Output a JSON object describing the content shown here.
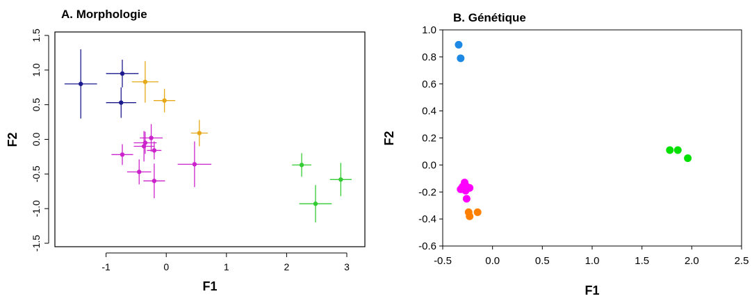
{
  "chart_data": [
    {
      "type": "scatter",
      "title": "A. Morphologie",
      "xlabel": "F1",
      "ylabel": "F2",
      "xlim": [
        -1.85,
        3.3
      ],
      "ylim": [
        -1.55,
        1.55
      ],
      "x_ticks": [
        -1,
        0,
        1,
        2,
        3
      ],
      "y_ticks": [
        -1.5,
        -1.0,
        -0.5,
        0.0,
        0.5,
        1.0,
        1.5
      ],
      "x_tick_labels": [
        "-1",
        "0",
        "1",
        "2",
        "3"
      ],
      "y_tick_labels": [
        "-1.5",
        "-1.0",
        "-0.5",
        "0.0",
        "0.5",
        "1.0",
        "1.5"
      ],
      "error_bars": true,
      "series": [
        {
          "color": "#1a1a8c",
          "points": [
            {
              "x": -1.42,
              "y": 0.8,
              "xerr": 0.27,
              "yerr": 0.5
            },
            {
              "x": -0.73,
              "y": 0.95,
              "xerr": 0.27,
              "yerr": 0.2
            },
            {
              "x": -0.75,
              "y": 0.53,
              "xerr": 0.25,
              "yerr": 0.22
            }
          ]
        },
        {
          "color": "#e6a817",
          "points": [
            {
              "x": -0.35,
              "y": 0.83,
              "xerr": 0.22,
              "yerr": 0.3
            },
            {
              "x": -0.03,
              "y": 0.56,
              "xerr": 0.18,
              "yerr": 0.17
            },
            {
              "x": 0.55,
              "y": 0.09,
              "xerr": 0.14,
              "yerr": 0.19
            }
          ]
        },
        {
          "color": "#cc22cc",
          "points": [
            {
              "x": -0.73,
              "y": -0.22,
              "xerr": 0.18,
              "yerr": 0.15
            },
            {
              "x": -0.25,
              "y": 0.02,
              "xerr": 0.19,
              "yerr": 0.2
            },
            {
              "x": -0.37,
              "y": -0.1,
              "xerr": 0.17,
              "yerr": 0.22
            },
            {
              "x": -0.35,
              "y": -0.05,
              "xerr": 0.19,
              "yerr": 0.16
            },
            {
              "x": -0.2,
              "y": -0.16,
              "xerr": 0.12,
              "yerr": 0.13
            },
            {
              "x": -0.45,
              "y": -0.47,
              "xerr": 0.2,
              "yerr": 0.18
            },
            {
              "x": -0.2,
              "y": -0.6,
              "xerr": 0.18,
              "yerr": 0.25
            },
            {
              "x": 0.47,
              "y": -0.36,
              "xerr": 0.28,
              "yerr": 0.33
            }
          ]
        },
        {
          "color": "#33cc33",
          "points": [
            {
              "x": 2.25,
              "y": -0.37,
              "xerr": 0.16,
              "yerr": 0.17
            },
            {
              "x": 2.48,
              "y": -0.93,
              "xerr": 0.27,
              "yerr": 0.27
            },
            {
              "x": 2.9,
              "y": -0.58,
              "xerr": 0.18,
              "yerr": 0.24
            }
          ]
        }
      ]
    },
    {
      "type": "scatter",
      "title": "B. Génétique",
      "xlabel": "F1",
      "ylabel": "F2",
      "xlim": [
        -0.5,
        2.5
      ],
      "ylim": [
        -0.6,
        1.0
      ],
      "x_ticks": [
        -0.5,
        0.0,
        0.5,
        1.0,
        1.5,
        2.0,
        2.5
      ],
      "y_ticks": [
        -0.6,
        -0.4,
        -0.2,
        0.0,
        0.2,
        0.4,
        0.6,
        0.8,
        1.0
      ],
      "x_tick_labels": [
        "-0.5",
        "0.0",
        "0.5",
        "1.0",
        "1.5",
        "2.0",
        "2.5"
      ],
      "y_tick_labels": [
        "-0.6",
        "-0.4",
        "-0.2",
        "0.0",
        "0.2",
        "0.4",
        "0.6",
        "0.8",
        "1.0"
      ],
      "series": [
        {
          "color": "#1e88e5",
          "points": [
            {
              "x": -0.34,
              "y": 0.89
            },
            {
              "x": -0.32,
              "y": 0.79
            }
          ]
        },
        {
          "color": "#ff00ff",
          "points": [
            {
              "x": -0.28,
              "y": -0.13
            },
            {
              "x": -0.3,
              "y": -0.16
            },
            {
              "x": -0.26,
              "y": -0.16
            },
            {
              "x": -0.29,
              "y": -0.18
            },
            {
              "x": -0.32,
              "y": -0.18
            },
            {
              "x": -0.27,
              "y": -0.19
            },
            {
              "x": -0.23,
              "y": -0.17
            },
            {
              "x": -0.26,
              "y": -0.25
            }
          ]
        },
        {
          "color": "#ff8000",
          "points": [
            {
              "x": -0.24,
              "y": -0.35
            },
            {
              "x": -0.15,
              "y": -0.35
            },
            {
              "x": -0.23,
              "y": -0.38
            }
          ]
        },
        {
          "color": "#00e000",
          "points": [
            {
              "x": 1.78,
              "y": 0.11
            },
            {
              "x": 1.86,
              "y": 0.11
            },
            {
              "x": 1.96,
              "y": 0.05
            }
          ]
        }
      ]
    }
  ]
}
